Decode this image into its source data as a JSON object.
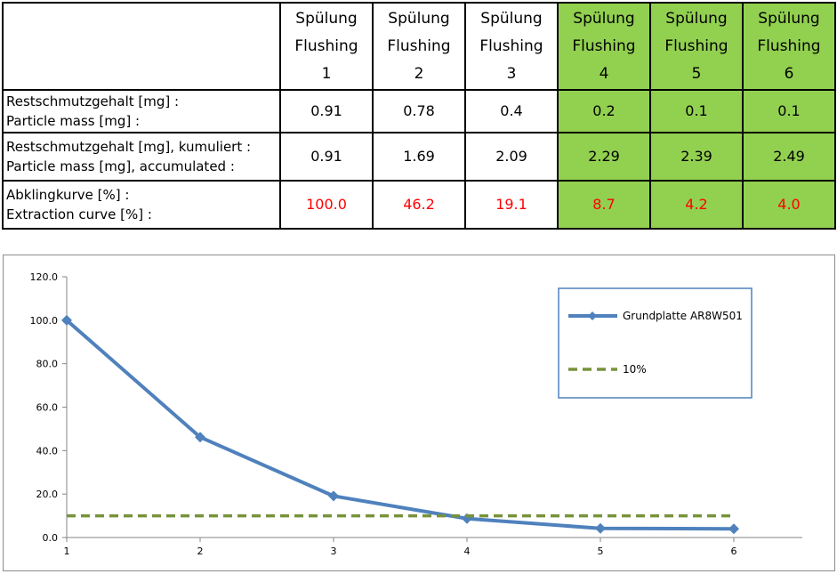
{
  "table": {
    "headers": [
      {
        "line1": "Spülung",
        "line2": "Flushing",
        "line3": "1",
        "highlight": false
      },
      {
        "line1": "Spülung",
        "line2": "Flushing",
        "line3": "2",
        "highlight": false
      },
      {
        "line1": "Spülung",
        "line2": "Flushing",
        "line3": "3",
        "highlight": false
      },
      {
        "line1": "Spülung",
        "line2": "Flushing",
        "line3": "4",
        "highlight": true
      },
      {
        "line1": "Spülung",
        "line2": "Flushing",
        "line3": "5",
        "highlight": true
      },
      {
        "line1": "Spülung",
        "line2": "Flushing",
        "line3": "6",
        "highlight": true
      }
    ],
    "rows": [
      {
        "label1": "Restschmutzgehalt [mg] :",
        "label2": "Particle mass [mg] :",
        "values": [
          "0.91",
          "0.78",
          "0.4",
          "0.2",
          "0.1",
          "0.1"
        ],
        "red": false
      },
      {
        "label1": "Restschmutzgehalt [mg], kumuliert :",
        "label2": "Particle mass [mg], accumulated :",
        "values": [
          "0.91",
          "1.69",
          "2.09",
          "2.29",
          "2.39",
          "2.49"
        ],
        "red": false
      },
      {
        "label1": "Abklingkurve [%] :",
        "label2": "Extraction curve [%] :",
        "values": [
          "100.0",
          "46.2",
          "19.1",
          "8.7",
          "4.2",
          "4.0"
        ],
        "red": true
      }
    ],
    "colors": {
      "highlight": "#92d050",
      "red_text": "#ff0000"
    }
  },
  "chart_data": {
    "type": "line",
    "x": [
      1,
      2,
      3,
      4,
      5,
      6
    ],
    "xticks": [
      "1",
      "2",
      "3",
      "4",
      "5",
      "6"
    ],
    "yticks": [
      "0.0",
      "20.0",
      "40.0",
      "60.0",
      "80.0",
      "100.0",
      "120.0"
    ],
    "ylim": [
      0,
      120
    ],
    "grid": false,
    "legend_position": "top-right",
    "series": [
      {
        "name": "Grundplatte AR8W501",
        "values": [
          100.0,
          46.2,
          19.1,
          8.7,
          4.2,
          4.0
        ],
        "color": "#4f81bd",
        "style": "solid",
        "marker": "diamond"
      },
      {
        "name": "10%",
        "values": [
          10,
          10,
          10,
          10,
          10,
          10
        ],
        "color": "#77933c",
        "style": "dashed",
        "marker": "none"
      }
    ]
  }
}
